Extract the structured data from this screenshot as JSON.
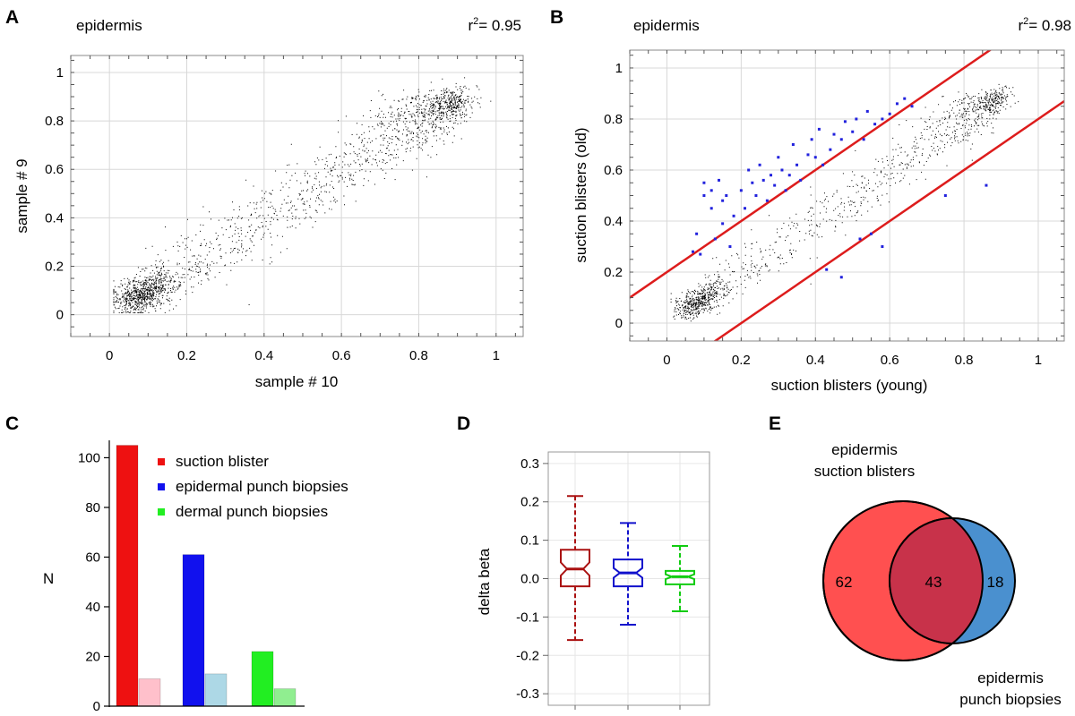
{
  "chart_data": [
    {
      "panel": "A",
      "type": "scatter",
      "title": "epidermis",
      "annotation": "r²= 0.95",
      "xlabel": "sample # 10",
      "ylabel": "sample # 9",
      "xlim": [
        -0.1,
        1.07
      ],
      "ylim": [
        -0.09,
        1.07
      ],
      "xticks": [
        0,
        0.2,
        0.4,
        0.6,
        0.8,
        1
      ],
      "yticks": [
        0,
        0.2,
        0.4,
        0.6,
        0.8,
        1
      ],
      "grid": true,
      "series": [
        {
          "color": "#000000",
          "points": "dense cloud along the diagonal y = x, concentrated near (0.05, 0.05) and (0.88, 0.88), ~15000 CpG sites"
        }
      ]
    },
    {
      "panel": "B",
      "type": "scatter",
      "title": "epidermis",
      "annotation": "r²= 0.98",
      "xlabel": "suction blisters (young)",
      "ylabel": "suction blisters (old)",
      "xlim": [
        -0.1,
        1.07
      ],
      "ylim": [
        -0.07,
        1.07
      ],
      "xticks": [
        0,
        0.2,
        0.4,
        0.6,
        0.8,
        1
      ],
      "yticks": [
        0,
        0.2,
        0.4,
        0.6,
        0.8,
        1
      ],
      "grid": true,
      "lines": [
        {
          "color": "#dd1c1c",
          "slope": 1,
          "intercept": 0.2
        },
        {
          "color": "#dd1c1c",
          "slope": 1,
          "intercept": -0.2
        }
      ],
      "series": [
        {
          "color": "#000000",
          "points": "dense cloud along y = x"
        },
        {
          "color": "#2222dd",
          "points": [
            [
              0.07,
              0.28
            ],
            [
              0.08,
              0.35
            ],
            [
              0.09,
              0.27
            ],
            [
              0.1,
              0.5
            ],
            [
              0.1,
              0.55
            ],
            [
              0.12,
              0.52
            ],
            [
              0.12,
              0.45
            ],
            [
              0.13,
              0.33
            ],
            [
              0.14,
              0.56
            ],
            [
              0.15,
              0.48
            ],
            [
              0.15,
              0.39
            ],
            [
              0.16,
              0.5
            ],
            [
              0.17,
              0.3
            ],
            [
              0.18,
              0.42
            ],
            [
              0.2,
              0.52
            ],
            [
              0.21,
              0.45
            ],
            [
              0.22,
              0.6
            ],
            [
              0.23,
              0.55
            ],
            [
              0.24,
              0.5
            ],
            [
              0.25,
              0.62
            ],
            [
              0.26,
              0.56
            ],
            [
              0.27,
              0.48
            ],
            [
              0.28,
              0.58
            ],
            [
              0.29,
              0.54
            ],
            [
              0.3,
              0.65
            ],
            [
              0.31,
              0.6
            ],
            [
              0.32,
              0.52
            ],
            [
              0.33,
              0.58
            ],
            [
              0.34,
              0.7
            ],
            [
              0.35,
              0.62
            ],
            [
              0.36,
              0.56
            ],
            [
              0.38,
              0.66
            ],
            [
              0.39,
              0.72
            ],
            [
              0.4,
              0.65
            ],
            [
              0.41,
              0.76
            ],
            [
              0.42,
              0.62
            ],
            [
              0.44,
              0.68
            ],
            [
              0.45,
              0.74
            ],
            [
              0.47,
              0.72
            ],
            [
              0.48,
              0.79
            ],
            [
              0.5,
              0.75
            ],
            [
              0.51,
              0.8
            ],
            [
              0.53,
              0.72
            ],
            [
              0.54,
              0.83
            ],
            [
              0.56,
              0.78
            ],
            [
              0.58,
              0.8
            ],
            [
              0.6,
              0.82
            ],
            [
              0.62,
              0.86
            ],
            [
              0.64,
              0.88
            ],
            [
              0.66,
              0.85
            ],
            [
              0.43,
              0.21
            ],
            [
              0.47,
              0.18
            ],
            [
              0.52,
              0.33
            ],
            [
              0.55,
              0.35
            ],
            [
              0.58,
              0.3
            ],
            [
              0.75,
              0.5
            ],
            [
              0.86,
              0.54
            ]
          ]
        }
      ]
    },
    {
      "panel": "C",
      "type": "bar",
      "xlabel": "",
      "ylabel": "N",
      "ylim": [
        0,
        107
      ],
      "yticks": [
        0,
        20,
        40,
        60,
        80,
        100
      ],
      "grid": false,
      "groups": [
        {
          "name": "suction blister",
          "color": "#ee1111",
          "values": [
            105,
            11
          ]
        },
        {
          "name": "epidermal punch biopsies",
          "color": "#1111ee",
          "values": [
            61,
            13
          ]
        },
        {
          "name": "dermal punch biopsies",
          "color": "#22ee22",
          "values": [
            22,
            7
          ]
        }
      ],
      "light_colors": [
        "#ffc0cb",
        "#add8e6",
        "#90ee90"
      ],
      "legend_position": "top-right",
      "legend": [
        "suction blister",
        "epidermal punch biopsies",
        "dermal punch biopsies"
      ]
    },
    {
      "panel": "D",
      "type": "box",
      "ylabel": "delta beta",
      "ylim": [
        -0.33,
        0.33
      ],
      "yticks": [
        0.3,
        0.2,
        0.1,
        0.0,
        -0.1,
        -0.2,
        -0.3
      ],
      "ytick_labels": [
        "0.3",
        "0.2",
        "0.1",
        "0.0",
        "-0.1",
        "-0.2",
        "-0.3"
      ],
      "grid": true,
      "boxes": [
        {
          "color": "#aa1111",
          "whisker_low": -0.16,
          "q1": -0.02,
          "median": 0.025,
          "q3": 0.075,
          "whisker_high": 0.215
        },
        {
          "color": "#1111cc",
          "whisker_low": -0.12,
          "q1": -0.02,
          "median": 0.015,
          "q3": 0.05,
          "whisker_high": 0.145
        },
        {
          "color": "#11cc11",
          "whisker_low": -0.085,
          "q1": -0.015,
          "median": 0.005,
          "q3": 0.02,
          "whisker_high": 0.085
        }
      ]
    },
    {
      "panel": "E",
      "type": "venn",
      "sets": [
        {
          "label": "epidermis\nsuction blisters",
          "only": "62",
          "color": "#ff5050"
        },
        {
          "label": "epidermis\npunch biopsies",
          "only": "18",
          "color": "#4a90cf"
        }
      ],
      "overlap": "43",
      "overlap_color": "#c8324a"
    }
  ]
}
